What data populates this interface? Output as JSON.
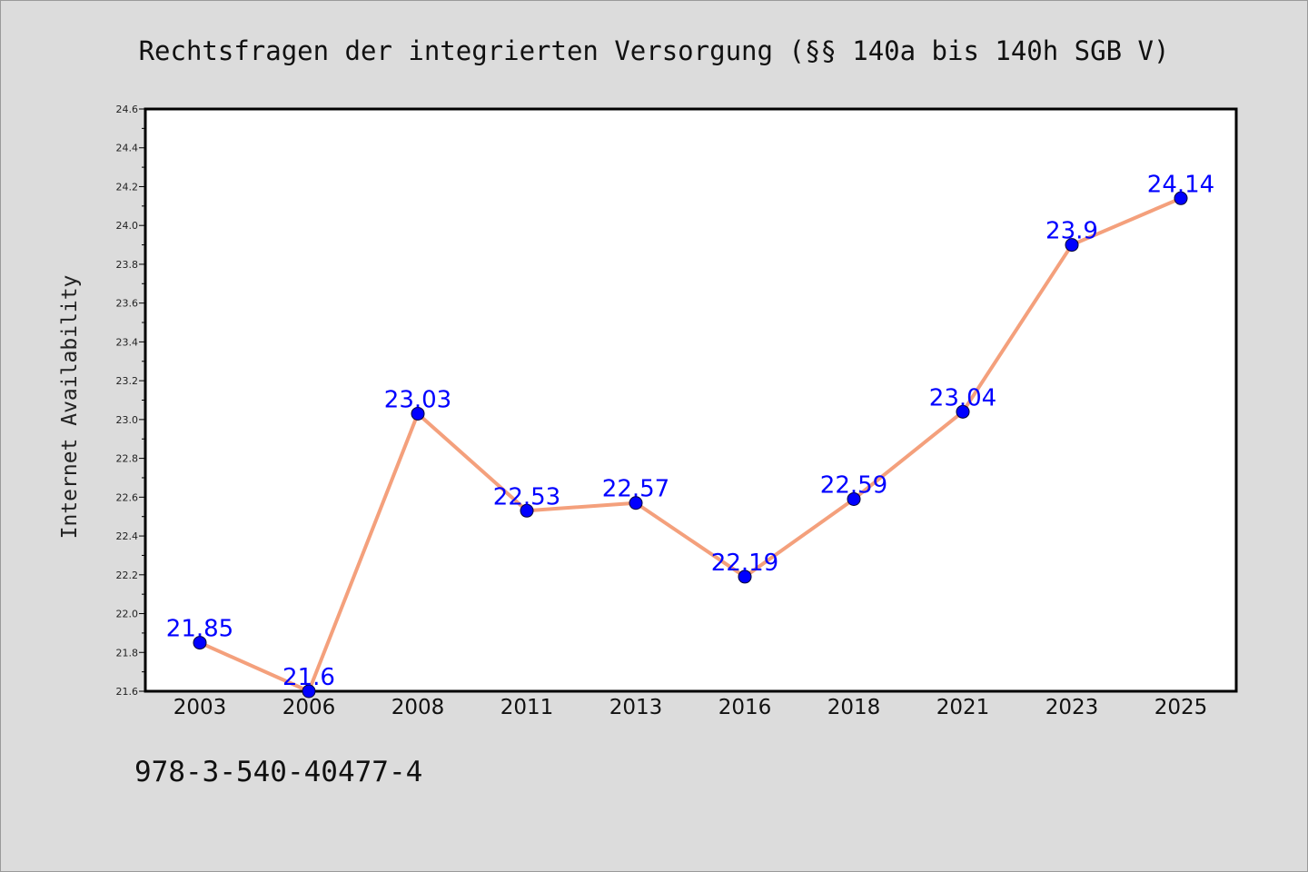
{
  "chart_data": {
    "type": "line",
    "title": "Rechtsfragen der integrierten Versorgung (§§ 140a bis 140h SGB V)",
    "xlabel": "",
    "ylabel": "Internet Availability",
    "x": [
      "2003",
      "2006",
      "2008",
      "2011",
      "2013",
      "2016",
      "2018",
      "2021",
      "2023",
      "2025"
    ],
    "series": [
      {
        "values": [
          21.85,
          21.6,
          23.03,
          22.53,
          22.57,
          22.19,
          22.59,
          23.04,
          23.9,
          24.14
        ],
        "labels": [
          "21.85",
          "21.6",
          "23.03",
          "22.53",
          "22.57",
          "22.19",
          "22.59",
          "23.04",
          "23.9",
          "24.14"
        ]
      }
    ],
    "ylim": [
      21.6,
      24.6
    ],
    "yticks": [
      "21.6",
      "21.8",
      "22.0",
      "22.2",
      "22.4",
      "22.6",
      "22.8",
      "23.0",
      "23.2",
      "23.4",
      "23.6",
      "23.8",
      "24.0",
      "24.2",
      "24.4",
      "24.6"
    ],
    "grid": false,
    "line_color": "#f4a07c",
    "marker_color": "#0000ff",
    "label_color": "#0000ff"
  },
  "footer": {
    "isbn": "978-3-540-40477-4"
  }
}
